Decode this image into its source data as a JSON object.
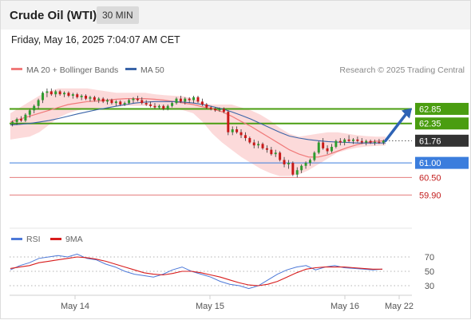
{
  "header": {
    "instrument": "Crude Oil (WTI)",
    "interval": "30 MIN",
    "timestamp": "Friday, May 16, 2025 7:04:07 AM CET"
  },
  "legend": {
    "ma20_label": "MA 20 + Bollinger Bands",
    "ma50_label": "MA 50",
    "copyright": "Research © 2025 Trading Central",
    "rsi_label": "RSI",
    "rsi_ma_label": "9MA"
  },
  "colors": {
    "candle_up": "#2e9c2e",
    "candle_down": "#c81818",
    "ma20": "#f07a7a",
    "ma50": "#3a64a8",
    "bollinger_fill": "#fbd3d3",
    "resistance": "#4a9d10",
    "pivot": "#3b7ddd",
    "support": "#e06565",
    "current": "#333333",
    "rsi": "#4d79d8",
    "rsi_ma": "#d81c1c"
  },
  "chart_data": [
    {
      "type": "candlestick",
      "title": "Crude Oil (WTI)",
      "interval": "30 MIN",
      "x_ticks": [
        "May 14",
        "May 15",
        "May 16",
        "May 22"
      ],
      "ylim": [
        59.5,
        63.6
      ],
      "ohlc": [
        [
          62.35,
          62.45,
          62.25,
          62.4
        ],
        [
          62.4,
          62.55,
          62.3,
          62.5
        ],
        [
          62.5,
          62.6,
          62.4,
          62.45
        ],
        [
          62.45,
          62.7,
          62.4,
          62.65
        ],
        [
          62.65,
          62.85,
          62.55,
          62.8
        ],
        [
          62.8,
          63.0,
          62.7,
          62.95
        ],
        [
          62.95,
          63.2,
          62.85,
          63.15
        ],
        [
          63.15,
          63.45,
          63.05,
          63.4
        ],
        [
          63.4,
          63.55,
          63.25,
          63.45
        ],
        [
          63.45,
          63.55,
          63.3,
          63.35
        ],
        [
          63.35,
          63.5,
          63.25,
          63.45
        ],
        [
          63.45,
          63.5,
          63.3,
          63.35
        ],
        [
          63.35,
          63.45,
          63.25,
          63.4
        ],
        [
          63.4,
          63.45,
          63.25,
          63.3
        ],
        [
          63.3,
          63.4,
          63.2,
          63.35
        ],
        [
          63.35,
          63.4,
          63.2,
          63.25
        ],
        [
          63.25,
          63.35,
          63.15,
          63.3
        ],
        [
          63.3,
          63.35,
          63.15,
          63.2
        ],
        [
          63.2,
          63.3,
          63.1,
          63.25
        ],
        [
          63.25,
          63.3,
          63.1,
          63.15
        ],
        [
          63.15,
          63.25,
          63.05,
          63.2
        ],
        [
          63.2,
          63.25,
          63.05,
          63.1
        ],
        [
          63.1,
          63.2,
          63.0,
          63.15
        ],
        [
          63.15,
          63.2,
          63.0,
          63.05
        ],
        [
          63.05,
          63.15,
          62.95,
          63.1
        ],
        [
          63.1,
          63.15,
          62.95,
          63.0
        ],
        [
          63.0,
          63.1,
          62.95,
          63.05
        ],
        [
          63.05,
          63.2,
          63.0,
          63.15
        ],
        [
          63.15,
          63.25,
          63.05,
          63.2
        ],
        [
          63.2,
          63.3,
          63.1,
          63.15
        ],
        [
          63.15,
          63.25,
          63.0,
          63.05
        ],
        [
          63.05,
          63.15,
          62.95,
          63.0
        ],
        [
          63.0,
          63.1,
          62.9,
          62.95
        ],
        [
          62.95,
          63.05,
          62.85,
          62.9
        ],
        [
          62.9,
          63.0,
          62.85,
          62.95
        ],
        [
          62.95,
          63.0,
          62.8,
          62.85
        ],
        [
          62.85,
          63.0,
          62.8,
          62.95
        ],
        [
          62.95,
          63.1,
          62.9,
          63.05
        ],
        [
          63.05,
          63.25,
          63.0,
          63.2
        ],
        [
          63.2,
          63.3,
          63.05,
          63.1
        ],
        [
          63.1,
          63.25,
          63.0,
          63.2
        ],
        [
          63.2,
          63.25,
          63.05,
          63.15
        ],
        [
          63.15,
          63.3,
          63.05,
          63.25
        ],
        [
          63.25,
          63.3,
          63.05,
          63.1
        ],
        [
          63.1,
          63.2,
          62.95,
          63.0
        ],
        [
          63.0,
          63.05,
          62.85,
          62.9
        ],
        [
          62.9,
          62.95,
          62.8,
          62.85
        ],
        [
          62.85,
          62.9,
          62.75,
          62.8
        ],
        [
          62.8,
          62.9,
          62.75,
          62.85
        ],
        [
          62.85,
          62.9,
          62.7,
          62.75
        ],
        [
          62.75,
          62.8,
          61.95,
          62.05
        ],
        [
          62.05,
          62.25,
          61.95,
          62.15
        ],
        [
          62.15,
          62.25,
          62.0,
          62.05
        ],
        [
          62.05,
          62.15,
          61.85,
          61.95
        ],
        [
          61.95,
          62.05,
          61.75,
          61.85
        ],
        [
          61.85,
          61.9,
          61.65,
          61.7
        ],
        [
          61.7,
          61.8,
          61.5,
          61.6
        ],
        [
          61.6,
          61.75,
          61.5,
          61.65
        ],
        [
          61.65,
          61.7,
          61.45,
          61.5
        ],
        [
          61.5,
          61.6,
          61.35,
          61.45
        ],
        [
          61.45,
          61.55,
          61.25,
          61.3
        ],
        [
          61.3,
          61.45,
          61.2,
          61.35
        ],
        [
          61.35,
          61.4,
          61.05,
          61.1
        ],
        [
          61.1,
          61.2,
          60.85,
          60.95
        ],
        [
          60.95,
          61.1,
          60.8,
          61.0
        ],
        [
          61.0,
          61.05,
          60.55,
          60.6
        ],
        [
          60.6,
          60.85,
          60.5,
          60.75
        ],
        [
          60.75,
          60.95,
          60.65,
          60.9
        ],
        [
          60.9,
          61.05,
          60.8,
          61.0
        ],
        [
          61.0,
          61.15,
          60.9,
          61.1
        ],
        [
          61.1,
          61.4,
          61.05,
          61.35
        ],
        [
          61.35,
          61.75,
          61.3,
          61.7
        ],
        [
          61.7,
          61.85,
          61.45,
          61.5
        ],
        [
          61.5,
          61.6,
          61.3,
          61.4
        ],
        [
          61.4,
          61.65,
          61.35,
          61.55
        ],
        [
          61.55,
          61.8,
          61.5,
          61.75
        ],
        [
          61.75,
          61.85,
          61.6,
          61.7
        ],
        [
          61.7,
          61.85,
          61.6,
          61.8
        ],
        [
          61.8,
          61.95,
          61.7,
          61.75
        ],
        [
          61.75,
          61.85,
          61.65,
          61.8
        ],
        [
          61.8,
          61.9,
          61.7,
          61.75
        ],
        [
          61.75,
          61.85,
          61.65,
          61.7
        ],
        [
          61.7,
          61.8,
          61.6,
          61.75
        ],
        [
          61.75,
          61.8,
          61.65,
          61.7
        ],
        [
          61.7,
          61.8,
          61.6,
          61.72
        ],
        [
          61.72,
          61.82,
          61.65,
          61.7
        ],
        [
          61.7,
          61.8,
          61.62,
          61.76
        ]
      ],
      "ma20": [
        62.4,
        62.5,
        62.6,
        62.7,
        62.8,
        62.9,
        63.0,
        63.05,
        63.1,
        63.12,
        63.15,
        63.18,
        63.2,
        63.2,
        63.2,
        63.18,
        63.15,
        63.1,
        63.05,
        63.0,
        62.92,
        62.85,
        62.75,
        62.6,
        62.42,
        62.25,
        62.05,
        61.85,
        61.65,
        61.45,
        61.3,
        61.2,
        61.2,
        61.28,
        61.4,
        61.52,
        61.62,
        61.7,
        61.74,
        61.76
      ],
      "bb_upper": [
        62.7,
        62.9,
        63.1,
        63.3,
        63.45,
        63.55,
        63.55,
        63.55,
        63.55,
        63.5,
        63.45,
        63.4,
        63.4,
        63.4,
        63.4,
        63.35,
        63.32,
        63.3,
        63.28,
        63.2,
        63.05,
        63.0,
        63.0,
        63.0,
        62.9,
        62.8,
        62.65,
        62.45,
        62.2,
        62.0,
        61.9,
        61.95,
        62.0,
        62.05,
        62.05,
        62.0,
        61.95,
        61.92,
        61.9,
        61.9
      ],
      "bb_lower": [
        61.8,
        61.85,
        61.9,
        62.05,
        62.3,
        62.55,
        62.7,
        62.8,
        62.85,
        62.88,
        62.9,
        62.92,
        62.95,
        62.95,
        62.95,
        62.92,
        62.88,
        62.85,
        62.8,
        62.7,
        62.4,
        62.0,
        61.7,
        61.45,
        61.2,
        61.0,
        60.8,
        60.65,
        60.55,
        60.55,
        60.6,
        60.75,
        60.95,
        61.15,
        61.35,
        61.45,
        61.52,
        61.56,
        61.58,
        61.6
      ],
      "ma50": [
        62.3,
        62.32,
        62.35,
        62.4,
        62.45,
        62.52,
        62.6,
        62.68,
        62.75,
        62.82,
        62.88,
        62.94,
        63.0,
        63.05,
        63.08,
        63.1,
        63.1,
        63.1,
        63.08,
        63.05,
        63.0,
        62.93,
        62.85,
        62.75,
        62.63,
        62.5,
        62.35,
        62.2,
        62.05,
        61.92,
        61.85,
        61.8,
        61.76,
        61.73,
        61.71,
        61.7,
        61.68,
        61.68,
        61.68,
        61.68
      ],
      "levels": [
        {
          "value": 62.85,
          "label": "62.85",
          "kind": "resistance"
        },
        {
          "value": 62.35,
          "label": "62.35",
          "kind": "resistance"
        },
        {
          "value": 61.76,
          "label": "61.76",
          "kind": "current"
        },
        {
          "value": 61.0,
          "label": "61.00",
          "kind": "pivot"
        },
        {
          "value": 60.5,
          "label": "60.50",
          "kind": "support"
        },
        {
          "value": 59.9,
          "label": "59.90",
          "kind": "support"
        }
      ],
      "arrow": {
        "from": 61.76,
        "to": 62.85,
        "direction": "up"
      }
    },
    {
      "type": "line",
      "title": "RSI",
      "ylim": [
        20,
        80
      ],
      "y_ticks": [
        70,
        50,
        30
      ],
      "series": [
        {
          "name": "RSI",
          "values": [
            52,
            58,
            62,
            68,
            70,
            72,
            70,
            74,
            68,
            66,
            60,
            56,
            50,
            46,
            44,
            42,
            46,
            52,
            56,
            50,
            46,
            42,
            36,
            32,
            30,
            26,
            30,
            38,
            46,
            52,
            56,
            58,
            52,
            56,
            58,
            55,
            54,
            53,
            52,
            53
          ]
        },
        {
          "name": "9MA",
          "values": [
            54,
            56,
            58,
            62,
            64,
            66,
            68,
            70,
            69,
            67,
            64,
            60,
            56,
            52,
            48,
            46,
            45,
            47,
            50,
            50,
            48,
            45,
            42,
            38,
            34,
            31,
            30,
            32,
            36,
            42,
            48,
            53,
            55,
            56,
            56,
            56,
            55,
            54,
            53,
            53
          ]
        }
      ]
    }
  ]
}
